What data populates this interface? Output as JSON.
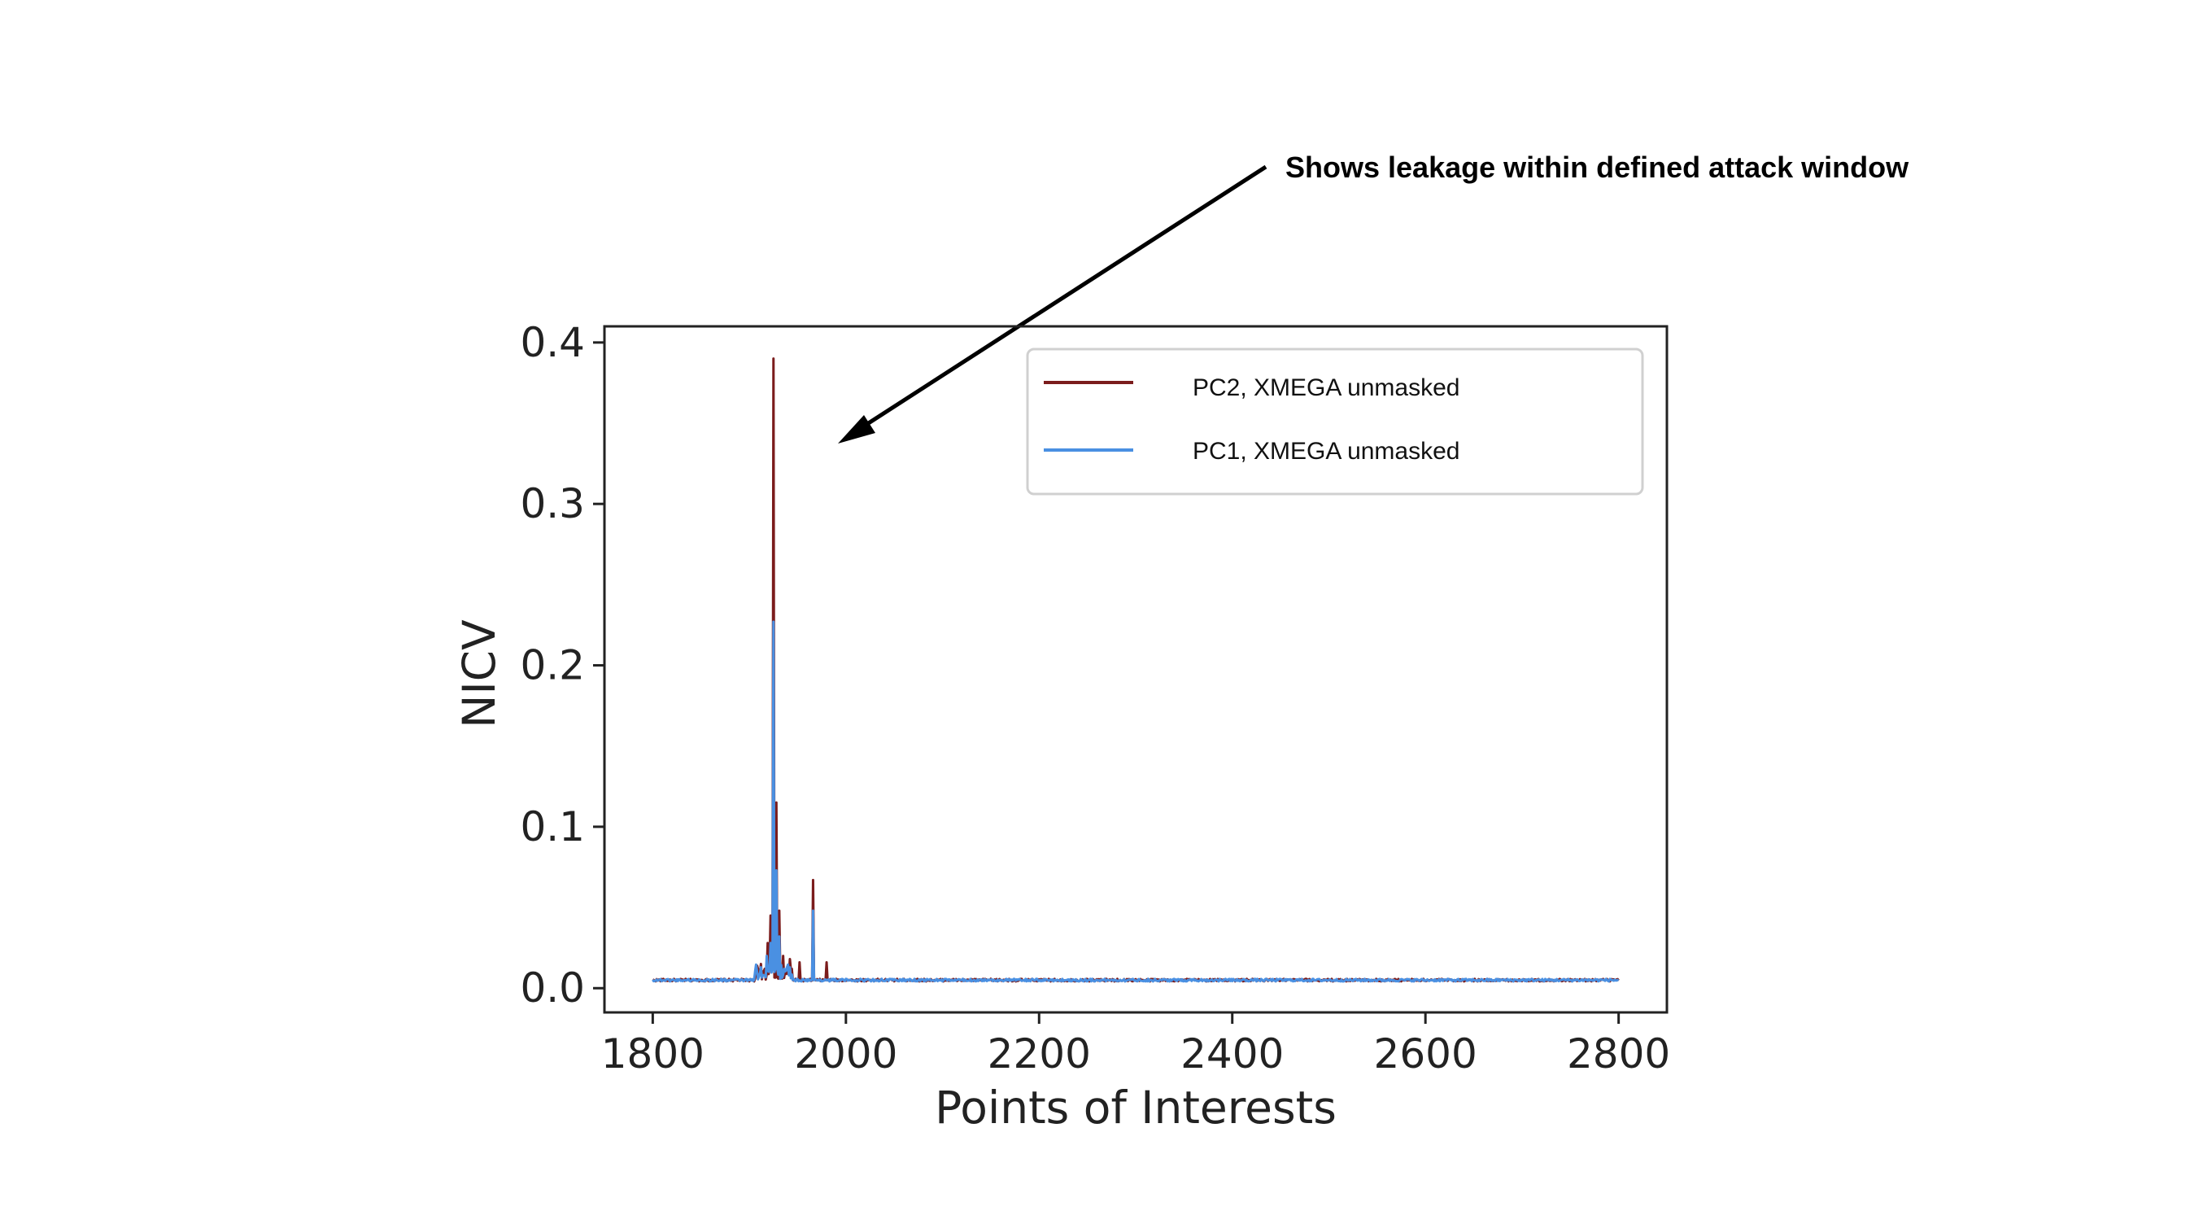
{
  "annotation": {
    "text": "Shows leakage within defined attack window"
  },
  "chart_data": {
    "type": "line",
    "xlabel": "Points of Interests",
    "ylabel": "NICV",
    "xlim": [
      1750,
      2850
    ],
    "ylim": [
      -0.015,
      0.41
    ],
    "xticks": [
      1800,
      2000,
      2200,
      2400,
      2600,
      2800
    ],
    "yticks": [
      0.0,
      0.1,
      0.2,
      0.3,
      0.4
    ],
    "ytick_labels": [
      "0.0",
      "0.1",
      "0.2",
      "0.3",
      "0.4"
    ],
    "x_range": [
      1800,
      2800
    ],
    "baseline": 0.005,
    "grid": false,
    "legend_position": "top-right",
    "series": [
      {
        "name": "PC2, XMEGA unmasked",
        "color": "#7b1c1c",
        "peaks": [
          {
            "x": 1912,
            "y": 0.015
          },
          {
            "x": 1916,
            "y": 0.012
          },
          {
            "x": 1919,
            "y": 0.028
          },
          {
            "x": 1922,
            "y": 0.045
          },
          {
            "x": 1925,
            "y": 0.39
          },
          {
            "x": 1928,
            "y": 0.115
          },
          {
            "x": 1931,
            "y": 0.048
          },
          {
            "x": 1935,
            "y": 0.02
          },
          {
            "x": 1942,
            "y": 0.018
          },
          {
            "x": 1952,
            "y": 0.016
          },
          {
            "x": 1966,
            "y": 0.067
          },
          {
            "x": 1980,
            "y": 0.016
          }
        ]
      },
      {
        "name": "PC1, XMEGA unmasked",
        "color": "#4a90e2",
        "peaks": [
          {
            "x": 1912,
            "y": 0.013
          },
          {
            "x": 1918,
            "y": 0.02
          },
          {
            "x": 1922,
            "y": 0.028
          },
          {
            "x": 1925,
            "y": 0.227
          },
          {
            "x": 1928,
            "y": 0.073
          },
          {
            "x": 1931,
            "y": 0.032
          },
          {
            "x": 1936,
            "y": 0.012
          },
          {
            "x": 1966,
            "y": 0.048
          }
        ]
      }
    ]
  }
}
